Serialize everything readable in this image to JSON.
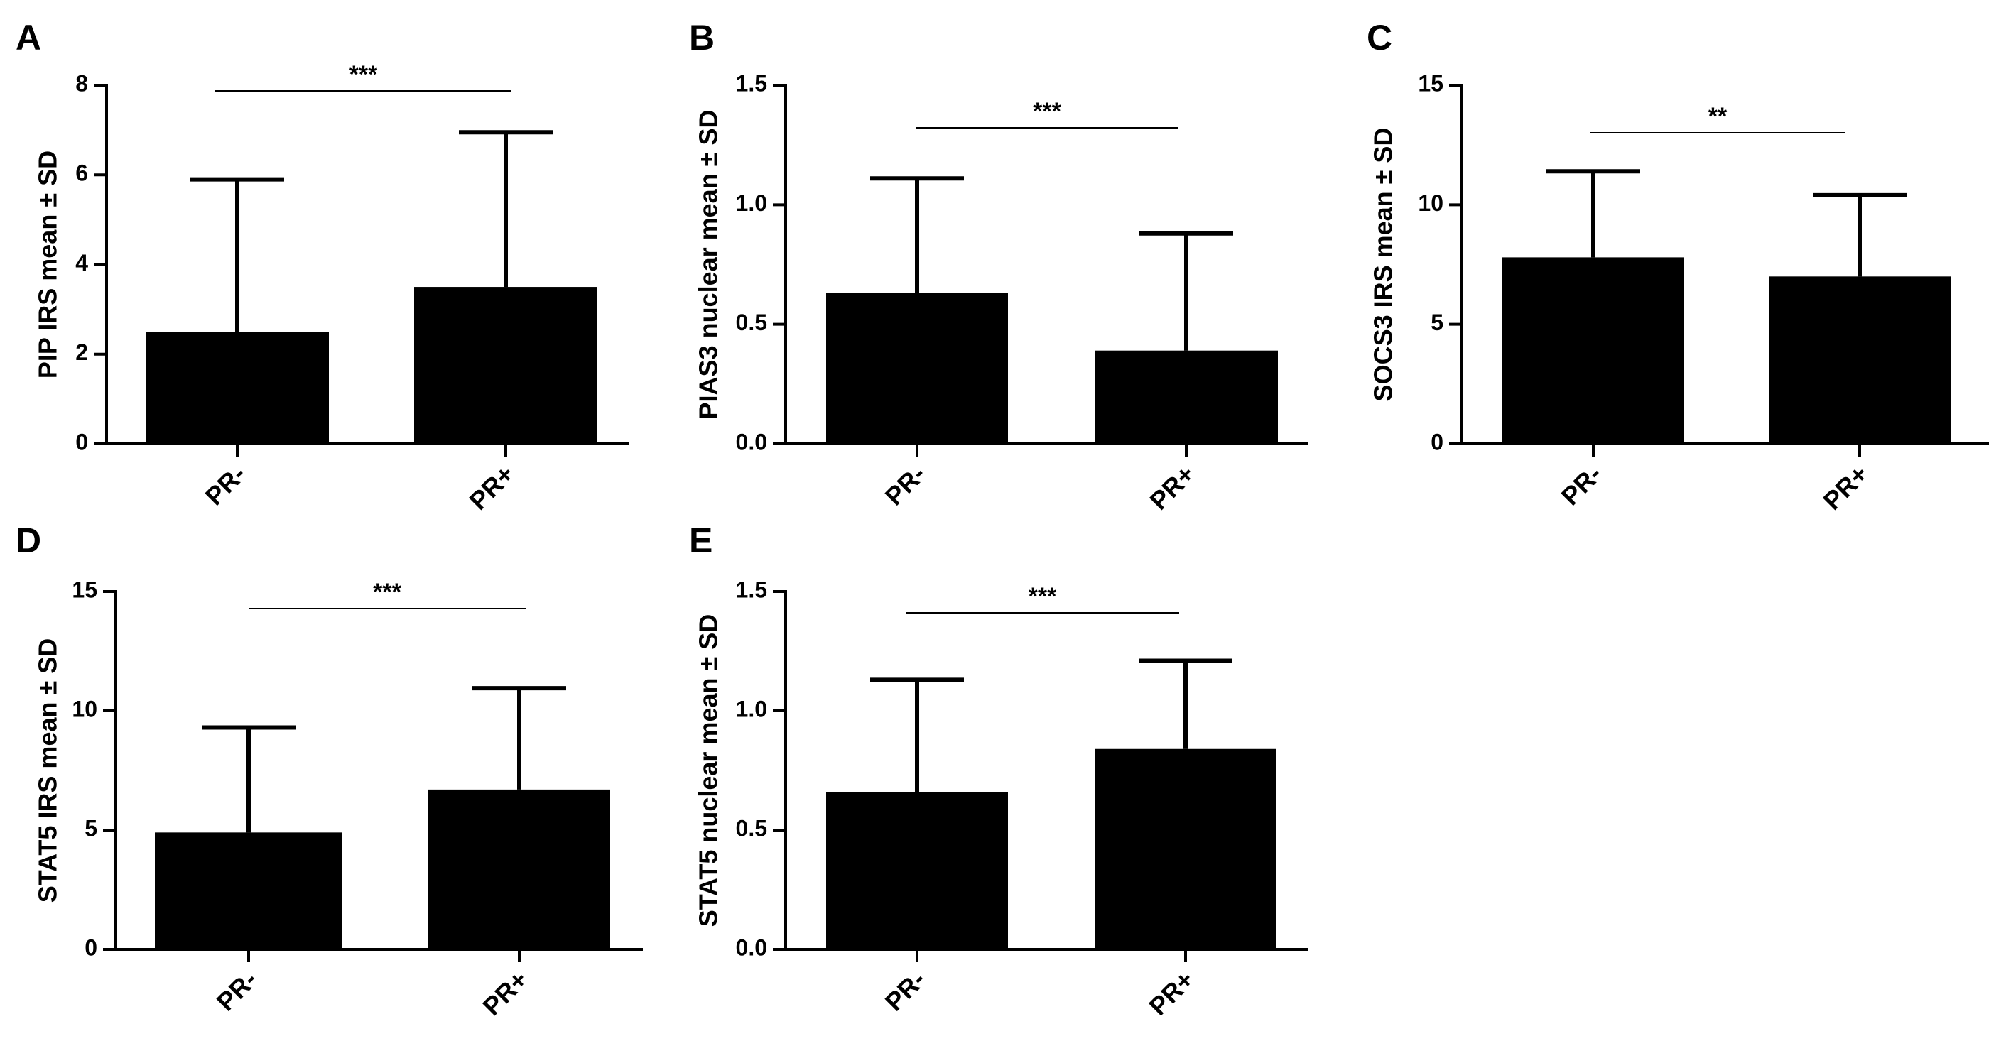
{
  "chart_data": [
    {
      "panel": "A",
      "type": "bar",
      "ylabel": "PIP IRS mean ± SD",
      "categories": [
        "PR-",
        "PR+"
      ],
      "values": [
        2.5,
        3.5
      ],
      "sd": [
        3.4,
        3.45
      ],
      "ylim": [
        0,
        8
      ],
      "yticks": [
        "0",
        "2",
        "4",
        "6",
        "8"
      ],
      "yticks_values": [
        0,
        2,
        4,
        6,
        8
      ],
      "significance": "***"
    },
    {
      "panel": "B",
      "type": "bar",
      "ylabel": "PIAS3 nuclear mean ± SD",
      "categories": [
        "PR-",
        "PR+"
      ],
      "values": [
        0.63,
        0.39
      ],
      "sd": [
        0.48,
        0.49
      ],
      "ylim": [
        0,
        1.5
      ],
      "yticks": [
        "0.0",
        "0.5",
        "1.0",
        "1.5"
      ],
      "yticks_values": [
        0,
        0.5,
        1.0,
        1.5
      ],
      "significance": "***"
    },
    {
      "panel": "C",
      "type": "bar",
      "ylabel": "SOCS3 IRS mean ± SD",
      "categories": [
        "PR-",
        "PR+"
      ],
      "values": [
        7.8,
        7.0
      ],
      "sd": [
        3.6,
        3.4
      ],
      "ylim": [
        0,
        15
      ],
      "yticks": [
        "0",
        "5",
        "10",
        "15"
      ],
      "yticks_values": [
        0,
        5,
        10,
        15
      ],
      "significance": "**"
    },
    {
      "panel": "D",
      "type": "bar",
      "ylabel": "STAT5 IRS mean ± SD",
      "categories": [
        "PR-",
        "PR+"
      ],
      "values": [
        4.9,
        6.7
      ],
      "sd": [
        4.4,
        4.25
      ],
      "ylim": [
        0,
        15
      ],
      "yticks": [
        "0",
        "5",
        "10",
        "15"
      ],
      "yticks_values": [
        0,
        5,
        10,
        15
      ],
      "significance": "***"
    },
    {
      "panel": "E",
      "type": "bar",
      "ylabel": "STAT5 nuclear mean ± SD",
      "categories": [
        "PR-",
        "PR+"
      ],
      "values": [
        0.66,
        0.84
      ],
      "sd": [
        0.47,
        0.37
      ],
      "ylim": [
        0,
        1.5
      ],
      "yticks": [
        "0.0",
        "0.5",
        "1.0",
        "1.5"
      ],
      "yticks_values": [
        0,
        0.5,
        1.0,
        1.5
      ],
      "significance": "***"
    }
  ]
}
